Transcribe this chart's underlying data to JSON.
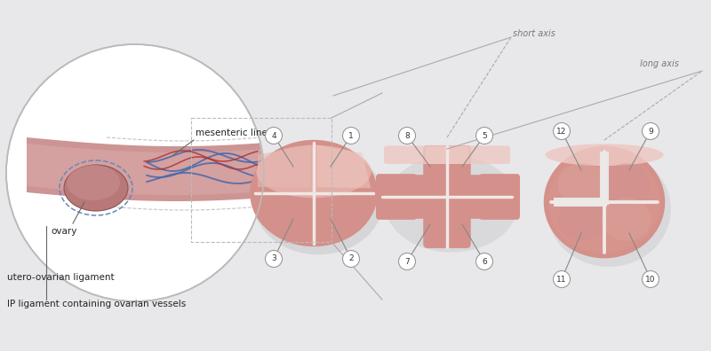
{
  "bg_color": "#e8e8ea",
  "circle_bg": "#ffffff",
  "circle_edge": "#bbbbbb",
  "ovary_color": "#b87070",
  "tissue_pink": "#cc8888",
  "tissue_light": "#dba8a8",
  "pink_main": "#d4908a",
  "pink_light": "#e8b8b2",
  "pink_shadow": "#b87070",
  "pink_top": "#edc8c2",
  "blue_vessel": "#4466aa",
  "red_vessel": "#aa3333",
  "line_color": "#888888",
  "dash_color": "#bbbbbb",
  "text_color": "#222222",
  "label_mesenteric": "mesenteric line",
  "label_ovary": "ovary",
  "label_utero": "utero-ovarian ligament",
  "label_ip": "IP ligament containing ovarian vessels",
  "label_short_axis": "short axis",
  "label_long_axis": "long axis",
  "white_line": "#f0e8e5",
  "zone_labels_g1": [
    "4",
    "1",
    "2",
    "3"
  ],
  "zone_labels_g2": [
    "8",
    "5",
    "6",
    "7"
  ],
  "zone_labels_g3": [
    "12",
    "9",
    "10",
    "11"
  ]
}
